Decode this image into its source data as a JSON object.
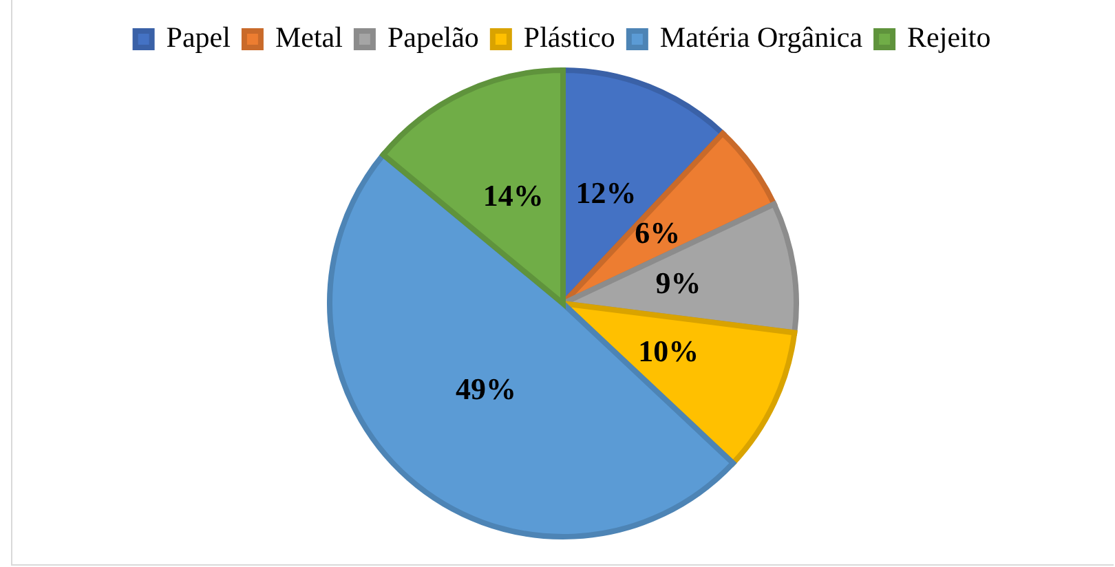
{
  "chart_data": {
    "type": "pie",
    "categories": [
      "Papel",
      "Metal",
      "Papelão",
      "Plástico",
      "Matéria Orgânica",
      "Rejeito"
    ],
    "values": [
      12,
      6,
      9,
      10,
      49,
      14
    ],
    "colors": [
      "#4472c4",
      "#ed7d31",
      "#a5a5a5",
      "#ffc000",
      "#5b9bd5",
      "#70ad47"
    ],
    "value_labels": [
      "12%",
      "6%",
      "9%",
      "10%",
      "49%",
      "14%"
    ],
    "legend": "top"
  }
}
